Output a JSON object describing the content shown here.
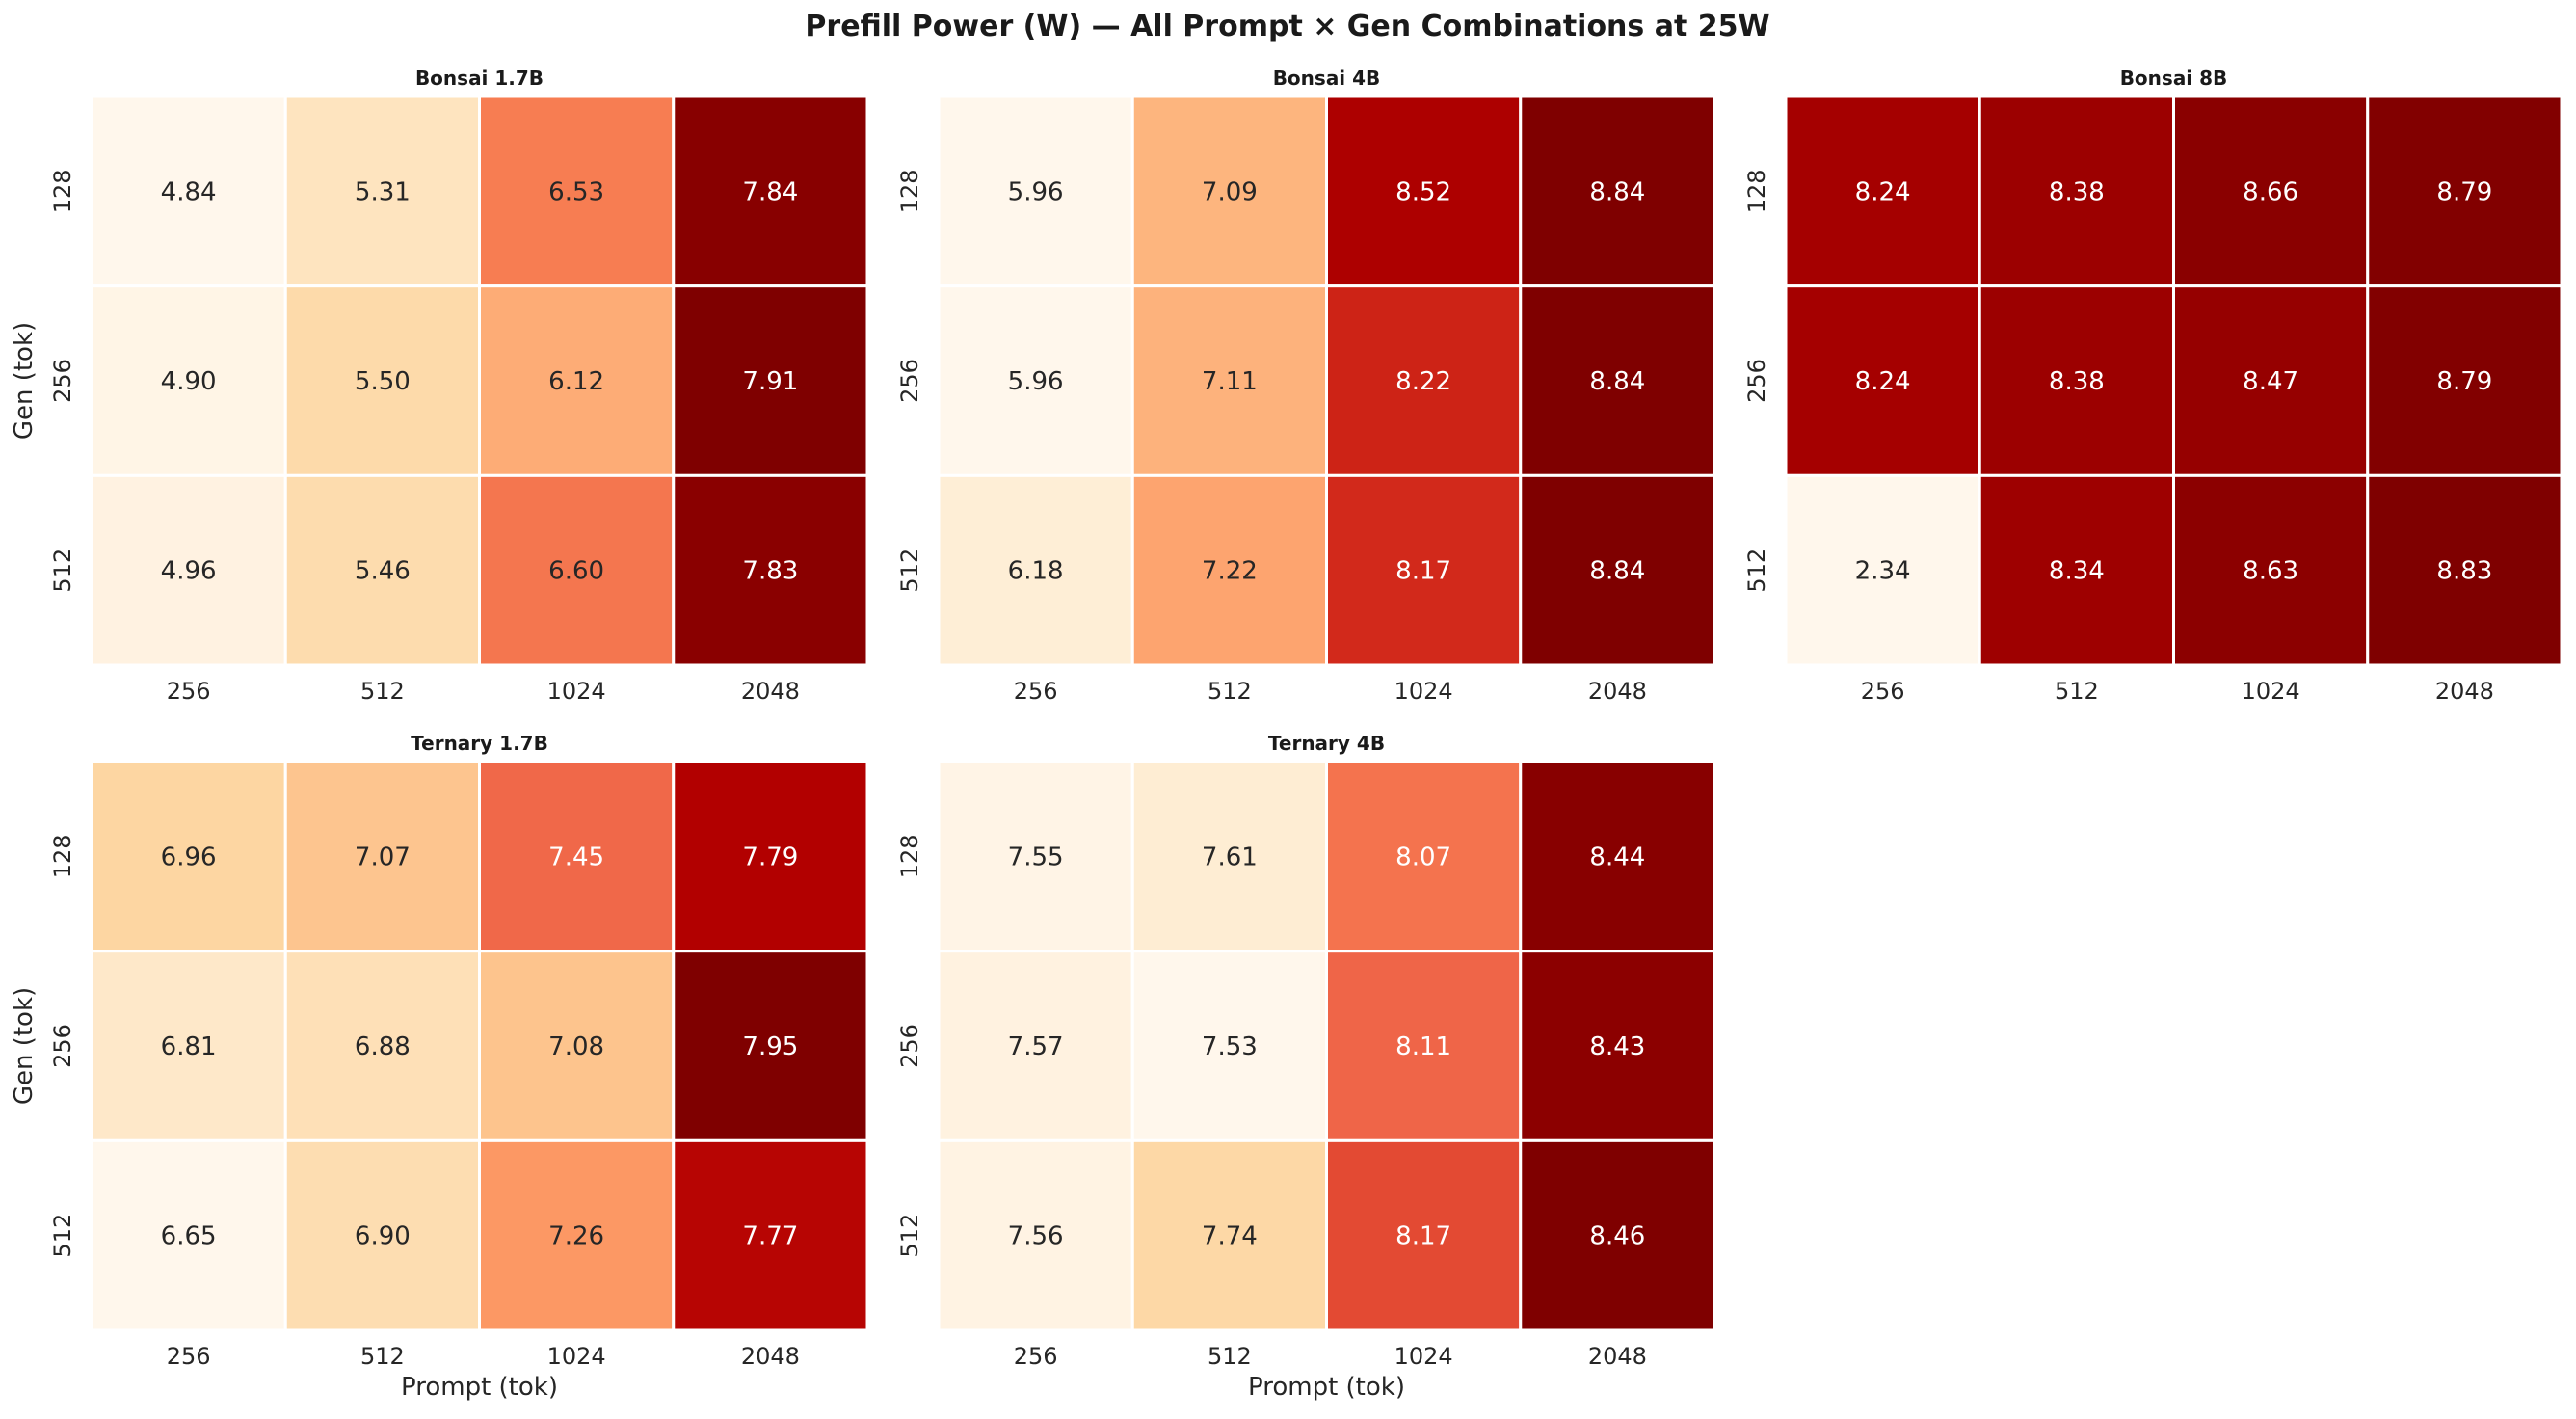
{
  "title": "Prefill Power (W) — All Prompt × Gen Combinations at 25W",
  "chart_data": [
    {
      "type": "heatmap",
      "title": "Bonsai 1.7B",
      "xlabel": "",
      "ylabel": "Gen (tok)",
      "x_categories": [
        "256",
        "512",
        "1024",
        "2048"
      ],
      "y_categories": [
        "128",
        "256",
        "512"
      ],
      "values": [
        [
          4.84,
          5.31,
          6.53,
          7.84
        ],
        [
          4.9,
          5.5,
          6.12,
          7.91
        ],
        [
          4.96,
          5.46,
          6.6,
          7.83
        ]
      ],
      "labels": [
        [
          "4.84",
          "5.31",
          "6.53",
          "7.84"
        ],
        [
          "4.90",
          "5.50",
          "6.12",
          "7.91"
        ],
        [
          "4.96",
          "5.46",
          "6.60",
          "7.83"
        ]
      ],
      "colormap": "OrRd"
    },
    {
      "type": "heatmap",
      "title": "Bonsai 4B",
      "xlabel": "",
      "ylabel": "",
      "x_categories": [
        "256",
        "512",
        "1024",
        "2048"
      ],
      "y_categories": [
        "128",
        "256",
        "512"
      ],
      "values": [
        [
          5.96,
          7.09,
          8.52,
          8.84
        ],
        [
          5.96,
          7.11,
          8.22,
          8.84
        ],
        [
          6.18,
          7.22,
          8.17,
          8.84
        ]
      ],
      "labels": [
        [
          "5.96",
          "7.09",
          "8.52",
          "8.84"
        ],
        [
          "5.96",
          "7.11",
          "8.22",
          "8.84"
        ],
        [
          "6.18",
          "7.22",
          "8.17",
          "8.84"
        ]
      ],
      "colormap": "OrRd"
    },
    {
      "type": "heatmap",
      "title": "Bonsai 8B",
      "xlabel": "",
      "ylabel": "",
      "x_categories": [
        "256",
        "512",
        "1024",
        "2048"
      ],
      "y_categories": [
        "128",
        "256",
        "512"
      ],
      "values": [
        [
          8.24,
          8.38,
          8.66,
          8.79
        ],
        [
          8.24,
          8.38,
          8.47,
          8.79
        ],
        [
          2.34,
          8.34,
          8.63,
          8.83
        ]
      ],
      "labels": [
        [
          "8.24",
          "8.38",
          "8.66",
          "8.79"
        ],
        [
          "8.24",
          "8.38",
          "8.47",
          "8.79"
        ],
        [
          "2.34",
          "8.34",
          "8.63",
          "8.83"
        ]
      ],
      "colormap": "OrRd"
    },
    {
      "type": "heatmap",
      "title": "Ternary 1.7B",
      "xlabel": "Prompt (tok)",
      "ylabel": "Gen (tok)",
      "x_categories": [
        "256",
        "512",
        "1024",
        "2048"
      ],
      "y_categories": [
        "128",
        "256",
        "512"
      ],
      "values": [
        [
          6.96,
          7.07,
          7.45,
          7.79
        ],
        [
          6.81,
          6.88,
          7.08,
          7.95
        ],
        [
          6.65,
          6.9,
          7.26,
          7.77
        ]
      ],
      "labels": [
        [
          "6.96",
          "7.07",
          "7.45",
          "7.79"
        ],
        [
          "6.81",
          "6.88",
          "7.08",
          "7.95"
        ],
        [
          "6.65",
          "6.90",
          "7.26",
          "7.77"
        ]
      ],
      "colormap": "OrRd"
    },
    {
      "type": "heatmap",
      "title": "Ternary 4B",
      "xlabel": "Prompt (tok)",
      "ylabel": "",
      "x_categories": [
        "256",
        "512",
        "1024",
        "2048"
      ],
      "y_categories": [
        "128",
        "256",
        "512"
      ],
      "values": [
        [
          7.55,
          7.61,
          8.07,
          8.44
        ],
        [
          7.57,
          7.53,
          8.11,
          8.43
        ],
        [
          7.56,
          7.74,
          8.17,
          8.46
        ]
      ],
      "labels": [
        [
          "7.55",
          "7.61",
          "8.07",
          "8.44"
        ],
        [
          "7.57",
          "7.53",
          "8.11",
          "8.43"
        ],
        [
          "7.56",
          "7.74",
          "8.17",
          "8.46"
        ]
      ],
      "colormap": "OrRd"
    }
  ]
}
